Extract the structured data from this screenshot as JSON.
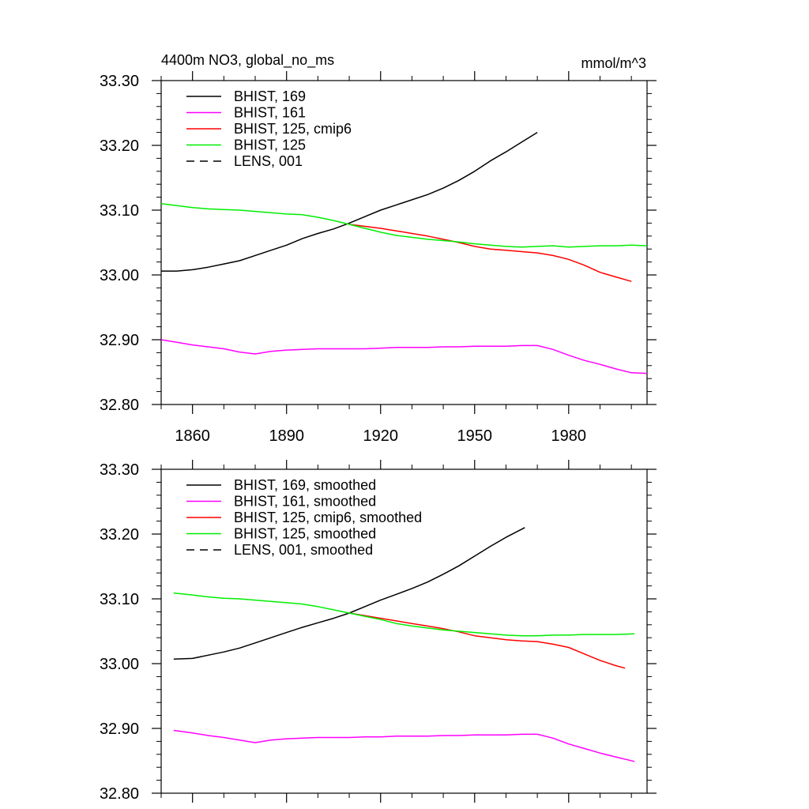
{
  "chart_data": [
    {
      "type": "line",
      "title": "4400m NO3, global_no_ms",
      "units": "mmol/m^3",
      "xlim": [
        1850,
        2005
      ],
      "ylim": [
        32.8,
        33.3
      ],
      "x_ticks": [
        1860,
        1890,
        1920,
        1950,
        1980
      ],
      "x_tick_labels": [
        "1860",
        "1890",
        "1920",
        "1950",
        "1980"
      ],
      "y_ticks": [
        32.8,
        32.9,
        33.0,
        33.1,
        33.2,
        33.3
      ],
      "y_tick_labels": [
        "32.80",
        "32.90",
        "33.00",
        "33.10",
        "33.20",
        "33.30"
      ],
      "legend_position": "top-left",
      "series": [
        {
          "name": "BHIST, 169",
          "color": "#000000",
          "dash": "solid",
          "x": [
            1850,
            1855,
            1860,
            1865,
            1870,
            1875,
            1880,
            1885,
            1890,
            1895,
            1900,
            1905,
            1910,
            1915,
            1920,
            1925,
            1930,
            1935,
            1940,
            1945,
            1950,
            1955,
            1960,
            1965,
            1970
          ],
          "y": [
            33.006,
            33.006,
            33.008,
            33.012,
            33.017,
            33.022,
            33.03,
            33.038,
            33.046,
            33.056,
            33.064,
            33.071,
            33.08,
            33.09,
            33.1,
            33.108,
            33.116,
            33.124,
            33.134,
            33.146,
            33.16,
            33.176,
            33.19,
            33.205,
            33.22
          ]
        },
        {
          "name": "BHIST, 161",
          "color": "#ff00ff",
          "dash": "solid",
          "x": [
            1850,
            1855,
            1860,
            1865,
            1870,
            1875,
            1880,
            1885,
            1890,
            1895,
            1900,
            1905,
            1910,
            1915,
            1920,
            1925,
            1930,
            1935,
            1940,
            1945,
            1950,
            1955,
            1960,
            1965,
            1970,
            1975,
            1980,
            1985,
            1990,
            1995,
            2000,
            2005
          ],
          "y": [
            32.9,
            32.896,
            32.892,
            32.889,
            32.886,
            32.881,
            32.878,
            32.882,
            32.884,
            32.885,
            32.886,
            32.886,
            32.886,
            32.886,
            32.887,
            32.888,
            32.888,
            32.888,
            32.889,
            32.889,
            32.89,
            32.89,
            32.89,
            32.891,
            32.891,
            32.885,
            32.876,
            32.868,
            32.862,
            32.855,
            32.849,
            32.848
          ]
        },
        {
          "name": "BHIST, 125, cmip6",
          "color": "#ff0000",
          "dash": "solid",
          "x": [
            1910,
            1915,
            1920,
            1925,
            1930,
            1935,
            1940,
            1945,
            1950,
            1955,
            1960,
            1965,
            1970,
            1975,
            1980,
            1985,
            1990,
            1995,
            2000
          ],
          "y": [
            33.078,
            33.075,
            33.072,
            33.068,
            33.064,
            33.06,
            33.055,
            33.05,
            33.044,
            33.04,
            33.038,
            33.036,
            33.034,
            33.03,
            33.024,
            33.015,
            33.004,
            32.997,
            32.99
          ]
        },
        {
          "name": "BHIST, 125",
          "color": "#00ee00",
          "dash": "solid",
          "x": [
            1850,
            1855,
            1860,
            1865,
            1870,
            1875,
            1880,
            1885,
            1890,
            1895,
            1900,
            1905,
            1910,
            1915,
            1920,
            1925,
            1930,
            1935,
            1940,
            1945,
            1950,
            1955,
            1960,
            1965,
            1970,
            1975,
            1980,
            1985,
            1990,
            1995,
            2000,
            2005
          ],
          "y": [
            33.11,
            33.107,
            33.104,
            33.102,
            33.101,
            33.1,
            33.098,
            33.096,
            33.094,
            33.093,
            33.089,
            33.084,
            33.078,
            33.072,
            33.066,
            33.061,
            33.058,
            33.055,
            33.053,
            33.051,
            33.048,
            33.046,
            33.044,
            33.043,
            33.044,
            33.045,
            33.043,
            33.044,
            33.045,
            33.045,
            33.046,
            33.045
          ]
        },
        {
          "name": "LENS, 001",
          "color": "#000000",
          "dash": "dashed",
          "x": [],
          "y": []
        }
      ]
    },
    {
      "type": "line",
      "title": "",
      "xlim": [
        1850,
        2005
      ],
      "ylim": [
        32.8,
        33.3
      ],
      "x_ticks": [
        1860,
        1890,
        1920,
        1950,
        1980
      ],
      "y_ticks": [
        32.8,
        32.9,
        33.0,
        33.1,
        33.2,
        33.3
      ],
      "y_tick_labels": [
        "32.80",
        "32.90",
        "33.00",
        "33.10",
        "33.20",
        "33.30"
      ],
      "legend_position": "top-left",
      "series": [
        {
          "name": "BHIST, 169, smoothed",
          "color": "#000000",
          "dash": "solid",
          "x": [
            1854,
            1860,
            1865,
            1870,
            1875,
            1880,
            1885,
            1890,
            1895,
            1900,
            1905,
            1910,
            1915,
            1920,
            1925,
            1930,
            1935,
            1940,
            1945,
            1950,
            1955,
            1960,
            1966
          ],
          "y": [
            33.007,
            33.008,
            33.013,
            33.018,
            33.024,
            33.032,
            33.04,
            33.048,
            33.056,
            33.063,
            33.07,
            33.078,
            33.088,
            33.098,
            33.107,
            33.116,
            33.126,
            33.138,
            33.151,
            33.166,
            33.181,
            33.195,
            33.21
          ]
        },
        {
          "name": "BHIST, 161, smoothed",
          "color": "#ff00ff",
          "dash": "solid",
          "x": [
            1854,
            1860,
            1865,
            1870,
            1875,
            1880,
            1885,
            1890,
            1895,
            1900,
            1905,
            1910,
            1915,
            1920,
            1925,
            1930,
            1935,
            1940,
            1945,
            1950,
            1955,
            1960,
            1965,
            1970,
            1975,
            1980,
            1985,
            1990,
            1995,
            2001
          ],
          "y": [
            32.897,
            32.893,
            32.889,
            32.886,
            32.882,
            32.878,
            32.882,
            32.884,
            32.885,
            32.886,
            32.886,
            32.886,
            32.887,
            32.887,
            32.888,
            32.888,
            32.888,
            32.889,
            32.889,
            32.89,
            32.89,
            32.89,
            32.891,
            32.891,
            32.885,
            32.876,
            32.869,
            32.862,
            32.856,
            32.849
          ]
        },
        {
          "name": "BHIST, 125, cmip6, smoothed",
          "color": "#ff0000",
          "dash": "solid",
          "x": [
            1910,
            1915,
            1920,
            1925,
            1930,
            1935,
            1940,
            1945,
            1950,
            1955,
            1960,
            1965,
            1970,
            1975,
            1980,
            1985,
            1990,
            1995,
            1998
          ],
          "y": [
            33.078,
            33.074,
            33.07,
            33.066,
            33.062,
            33.058,
            33.054,
            33.049,
            33.043,
            33.04,
            33.037,
            33.035,
            33.034,
            33.03,
            33.025,
            33.015,
            33.005,
            32.997,
            32.993
          ]
        },
        {
          "name": "BHIST, 125, smoothed",
          "color": "#00ee00",
          "dash": "solid",
          "x": [
            1854,
            1860,
            1865,
            1870,
            1875,
            1880,
            1885,
            1890,
            1895,
            1900,
            1905,
            1910,
            1915,
            1920,
            1925,
            1930,
            1935,
            1940,
            1945,
            1950,
            1955,
            1960,
            1965,
            1970,
            1975,
            1980,
            1985,
            1990,
            1995,
            2001
          ],
          "y": [
            33.109,
            33.106,
            33.103,
            33.101,
            33.1,
            33.098,
            33.096,
            33.094,
            33.092,
            33.088,
            33.083,
            33.078,
            33.073,
            33.068,
            33.062,
            33.058,
            33.055,
            33.052,
            33.05,
            33.048,
            33.046,
            33.044,
            33.043,
            33.043,
            33.044,
            33.044,
            33.045,
            33.045,
            33.045,
            33.046
          ]
        },
        {
          "name": "LENS, 001, smoothed",
          "color": "#000000",
          "dash": "dashed",
          "x": [],
          "y": []
        }
      ]
    }
  ]
}
